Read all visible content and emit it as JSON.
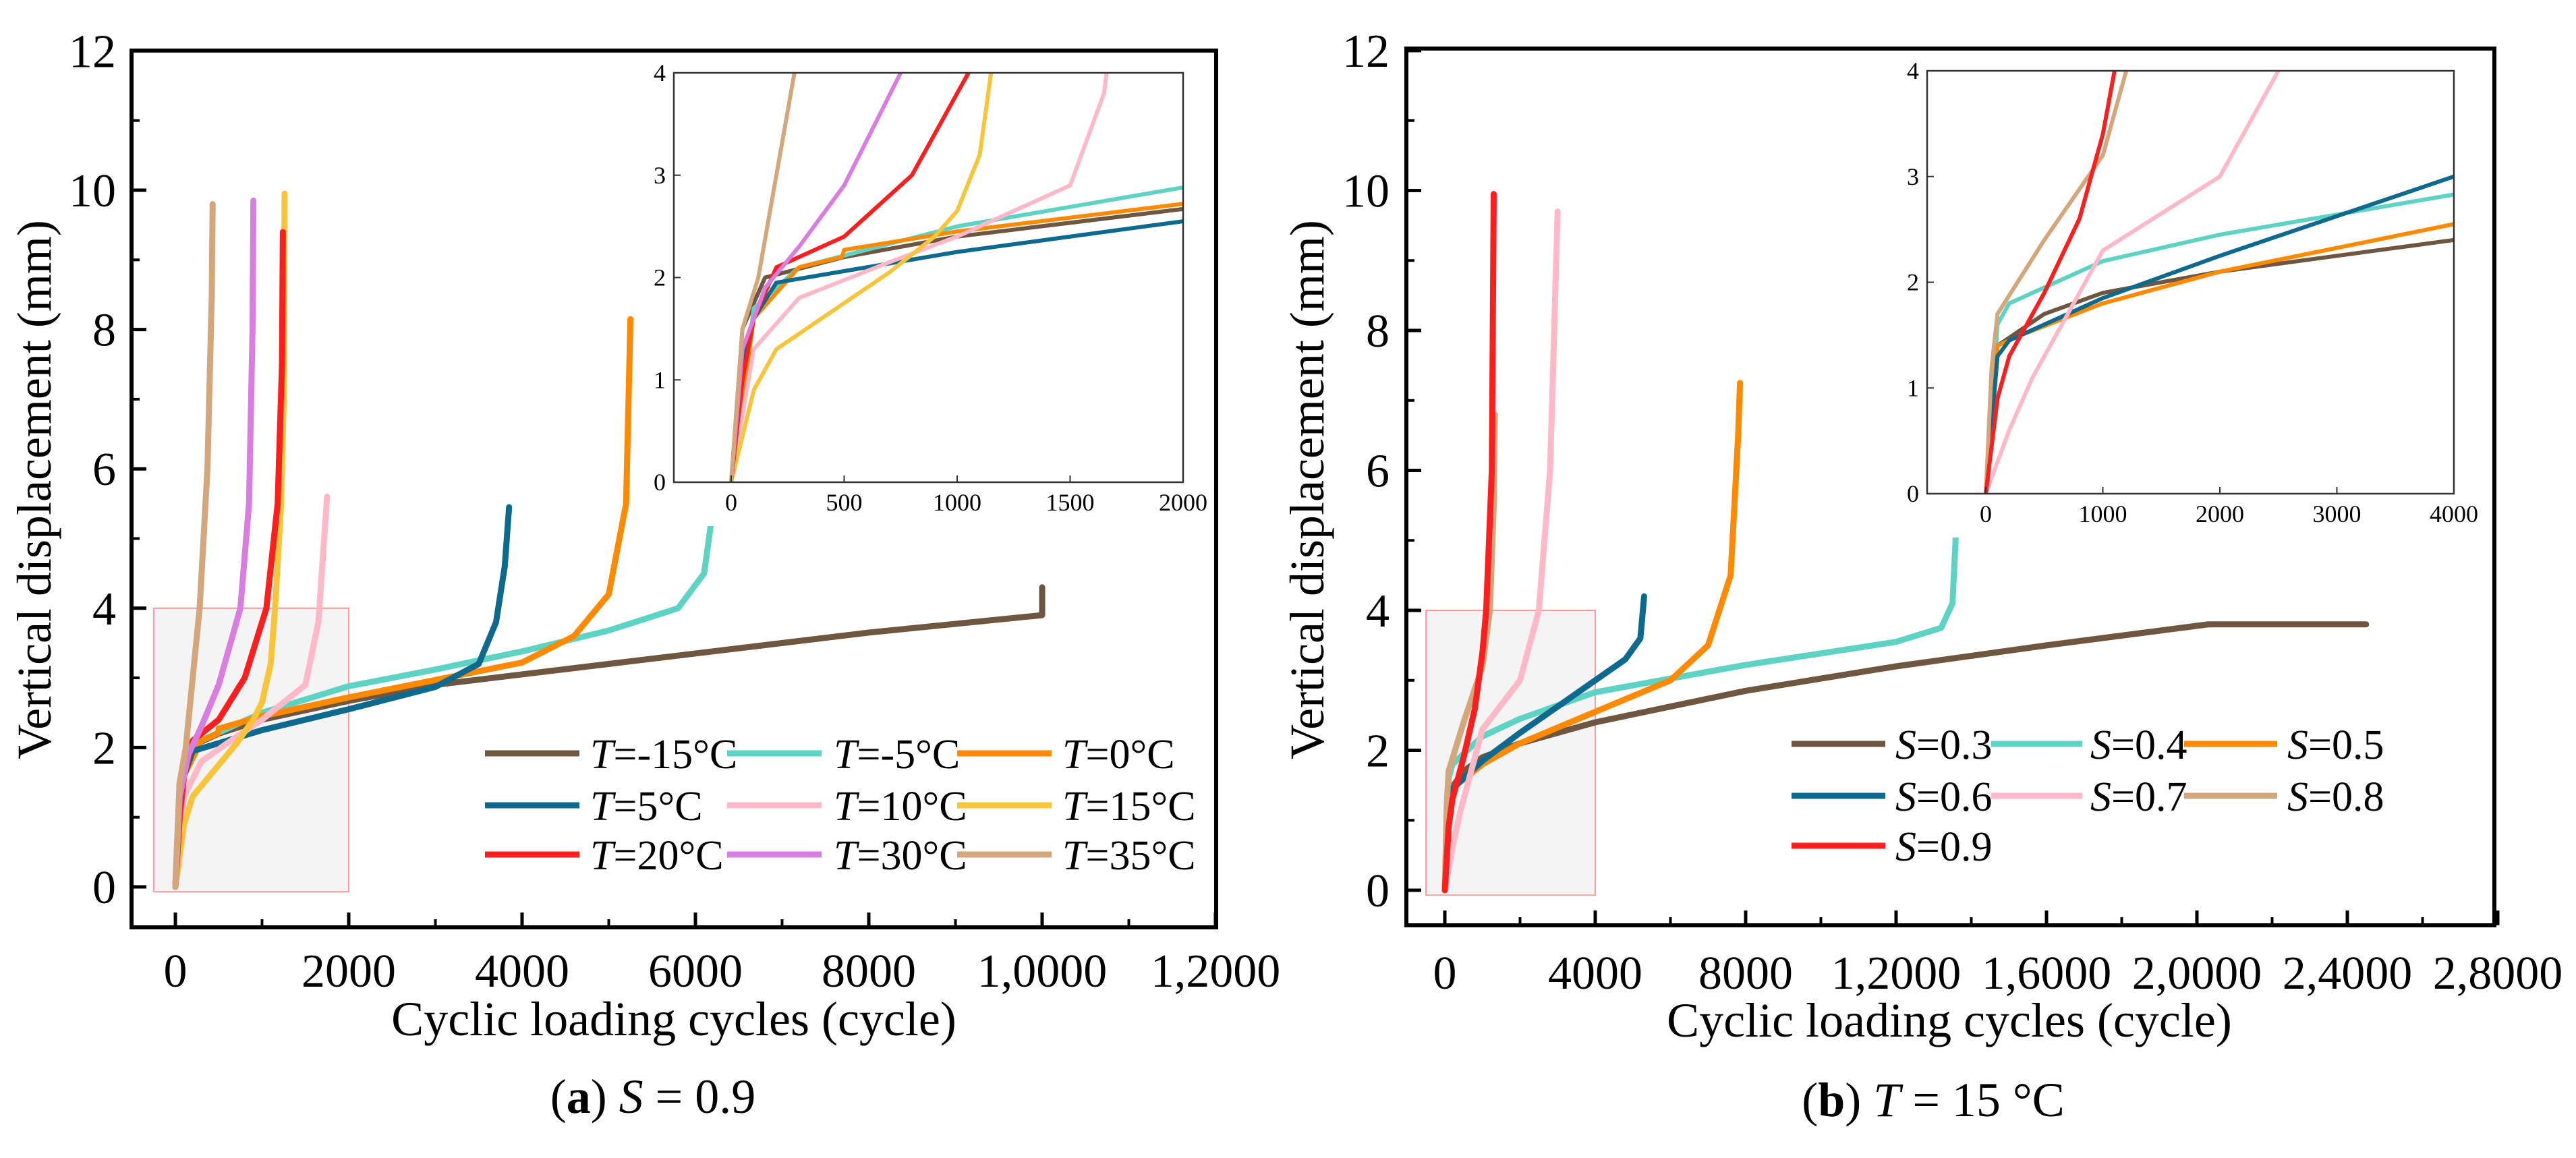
{
  "chart_data": [
    {
      "type": "line",
      "caption": {
        "label": "a",
        "var": "S",
        "rest": " = 0.9"
      },
      "xlabel": "Cyclic loading cycles (cycle)",
      "ylabel": "Vertical displacement (mm)",
      "xlim": [
        -500,
        12000
      ],
      "ylim": [
        -0.6,
        12
      ],
      "xticks": [
        {
          "v": 0,
          "t": "0"
        },
        {
          "v": 2000,
          "t": "2000"
        },
        {
          "v": 4000,
          "t": "4000"
        },
        {
          "v": 6000,
          "t": "6000"
        },
        {
          "v": 8000,
          "t": "8000"
        },
        {
          "v": 10000,
          "t": "1,0000"
        },
        {
          "v": 12000,
          "t": "1,2000"
        }
      ],
      "yticks": [
        {
          "v": 0,
          "t": "0"
        },
        {
          "v": 2,
          "t": "2"
        },
        {
          "v": 4,
          "t": "4"
        },
        {
          "v": 6,
          "t": "6"
        },
        {
          "v": 8,
          "t": "8"
        },
        {
          "v": 10,
          "t": "10"
        },
        {
          "v": 12,
          "t": "12"
        }
      ],
      "highlight_region": {
        "x": [
          -250,
          2000
        ],
        "y": [
          0,
          4
        ]
      },
      "legend_placement": "bottom-right",
      "inset": {
        "xlim": [
          -250,
          2000
        ],
        "ylim": [
          0,
          4
        ],
        "xticks": [
          {
            "v": 0,
            "t": "0"
          },
          {
            "v": 500,
            "t": "500"
          },
          {
            "v": 1000,
            "t": "1000"
          },
          {
            "v": 1500,
            "t": "1500"
          },
          {
            "v": 2000,
            "t": "2000"
          }
        ],
        "yticks": [
          {
            "v": 0,
            "t": "0"
          },
          {
            "v": 1,
            "t": "1"
          },
          {
            "v": 2,
            "t": "2"
          },
          {
            "v": 3,
            "t": "3"
          },
          {
            "v": 4,
            "t": "4"
          }
        ]
      },
      "series": [
        {
          "var": "T",
          "rest": "=-15°C",
          "color": "#6e5640",
          "points": [
            [
              0,
              0
            ],
            [
              50,
              1.5
            ],
            [
              150,
              2.0
            ],
            [
              500,
              2.2
            ],
            [
              1000,
              2.4
            ],
            [
              2000,
              2.67
            ],
            [
              3000,
              2.9
            ],
            [
              4000,
              3.05
            ],
            [
              6000,
              3.35
            ],
            [
              8000,
              3.65
            ],
            [
              10000,
              3.9
            ],
            [
              10000,
              4.3
            ]
          ]
        },
        {
          "var": "T",
          "rest": "=-5°C",
          "color": "#5fd3c3",
          "points": [
            [
              0,
              0
            ],
            [
              100,
              1.7
            ],
            [
              300,
              2.1
            ],
            [
              1000,
              2.5
            ],
            [
              2000,
              2.88
            ],
            [
              3000,
              3.12
            ],
            [
              4000,
              3.38
            ],
            [
              5000,
              3.68
            ],
            [
              5800,
              4.0
            ],
            [
              6100,
              4.5
            ],
            [
              6200,
              5.4
            ]
          ]
        },
        {
          "var": "T",
          "rest": "=0°C",
          "color": "#ff8a00",
          "points": [
            [
              0,
              0
            ],
            [
              100,
              1.6
            ],
            [
              300,
              2.1
            ],
            [
              490,
              2.2
            ],
            [
              500,
              2.27
            ],
            [
              1000,
              2.45
            ],
            [
              2000,
              2.72
            ],
            [
              3000,
              2.97
            ],
            [
              4000,
              3.22
            ],
            [
              4600,
              3.6
            ],
            [
              5000,
              4.2
            ],
            [
              5200,
              5.5
            ],
            [
              5250,
              8.15
            ]
          ]
        },
        {
          "var": "T",
          "rest": "=5°C",
          "color": "#0d6a8e",
          "points": [
            [
              0,
              0
            ],
            [
              50,
              1.2
            ],
            [
              100,
              1.6
            ],
            [
              200,
              1.95
            ],
            [
              1000,
              2.25
            ],
            [
              2000,
              2.55
            ],
            [
              3000,
              2.87
            ],
            [
              3500,
              3.2
            ],
            [
              3700,
              3.8
            ],
            [
              3800,
              4.6
            ],
            [
              3850,
              5.45
            ]
          ]
        },
        {
          "var": "T",
          "rest": "=10°C",
          "color": "#ffb8c8",
          "points": [
            [
              0,
              0
            ],
            [
              100,
              1.3
            ],
            [
              300,
              1.8
            ],
            [
              700,
              2.15
            ],
            [
              1000,
              2.4
            ],
            [
              1300,
              2.7
            ],
            [
              1500,
              2.9
            ],
            [
              1650,
              3.8
            ],
            [
              1750,
              5.6
            ]
          ]
        },
        {
          "var": "T",
          "rest": "=15°C",
          "color": "#f7c43a",
          "points": [
            [
              0,
              0
            ],
            [
              100,
              0.9
            ],
            [
              200,
              1.3
            ],
            [
              500,
              1.75
            ],
            [
              700,
              2.05
            ],
            [
              900,
              2.4
            ],
            [
              1000,
              2.65
            ],
            [
              1100,
              3.2
            ],
            [
              1150,
              4.0
            ],
            [
              1220,
              5.5
            ],
            [
              1250,
              7.0
            ],
            [
              1260,
              9.95
            ]
          ]
        },
        {
          "var": "T",
          "rest": "=20°C",
          "color": "#ff1e1e",
          "points": [
            [
              0,
              0
            ],
            [
              50,
              1.0
            ],
            [
              100,
              1.6
            ],
            [
              200,
              2.1
            ],
            [
              500,
              2.4
            ],
            [
              800,
              3.0
            ],
            [
              1050,
              4.0
            ],
            [
              1180,
              5.5
            ],
            [
              1230,
              7.5
            ],
            [
              1240,
              9.4
            ]
          ]
        },
        {
          "var": "T",
          "rest": "=30°C",
          "color": "#d97de0",
          "points": [
            [
              0,
              0
            ],
            [
              50,
              1.3
            ],
            [
              150,
              1.9
            ],
            [
              300,
              2.3
            ],
            [
              500,
              2.9
            ],
            [
              750,
              4.0
            ],
            [
              850,
              5.5
            ],
            [
              890,
              8.0
            ],
            [
              900,
              9.85
            ]
          ]
        },
        {
          "var": "T",
          "rest": "=35°C",
          "color": "#d4a67b",
          "points": [
            [
              0,
              0
            ],
            [
              50,
              1.5
            ],
            [
              120,
              2.0
            ],
            [
              200,
              3.0
            ],
            [
              280,
              4.0
            ],
            [
              370,
              6.0
            ],
            [
              420,
              8.5
            ],
            [
              430,
              9.8
            ]
          ]
        }
      ]
    },
    {
      "type": "line",
      "caption": {
        "label": "b",
        "var": "T",
        "rest": " = 15 °C"
      },
      "xlabel": "Cyclic loading cycles (cycle)",
      "ylabel": "Vertical displacement (mm)",
      "xlim": [
        -1000,
        28000
      ],
      "ylim": [
        -0.6,
        12
      ],
      "xticks": [
        {
          "v": 0,
          "t": "0"
        },
        {
          "v": 4000,
          "t": "4000"
        },
        {
          "v": 8000,
          "t": "8000"
        },
        {
          "v": 12000,
          "t": "1,2000"
        },
        {
          "v": 16000,
          "t": "1,6000"
        },
        {
          "v": 20000,
          "t": "2,0000"
        },
        {
          "v": 24000,
          "t": "2,4000"
        },
        {
          "v": 28000,
          "t": "2,8000"
        }
      ],
      "yticks": [
        {
          "v": 0,
          "t": "0"
        },
        {
          "v": 2,
          "t": "2"
        },
        {
          "v": 4,
          "t": "4"
        },
        {
          "v": 6,
          "t": "6"
        },
        {
          "v": 8,
          "t": "8"
        },
        {
          "v": 10,
          "t": "10"
        },
        {
          "v": 12,
          "t": "12"
        }
      ],
      "highlight_region": {
        "x": [
          -500,
          4000
        ],
        "y": [
          0,
          4
        ]
      },
      "legend_placement": "bottom-right",
      "inset": {
        "xlim": [
          -500,
          4000
        ],
        "ylim": [
          0,
          4
        ],
        "xticks": [
          {
            "v": 0,
            "t": "0"
          },
          {
            "v": 1000,
            "t": "1000"
          },
          {
            "v": 2000,
            "t": "2000"
          },
          {
            "v": 3000,
            "t": "3000"
          },
          {
            "v": 4000,
            "t": "4000"
          }
        ],
        "yticks": [
          {
            "v": 0,
            "t": "0"
          },
          {
            "v": 1,
            "t": "1"
          },
          {
            "v": 2,
            "t": "2"
          },
          {
            "v": 3,
            "t": "3"
          },
          {
            "v": 4,
            "t": "4"
          }
        ]
      },
      "series": [
        {
          "var": "S",
          "rest": "=0.3",
          "color": "#6e5640",
          "points": [
            [
              0,
              0
            ],
            [
              100,
              1.4
            ],
            [
              500,
              1.7
            ],
            [
              1000,
              1.9
            ],
            [
              2000,
              2.1
            ],
            [
              4000,
              2.4
            ],
            [
              8000,
              2.85
            ],
            [
              12000,
              3.2
            ],
            [
              16000,
              3.5
            ],
            [
              20300,
              3.8
            ],
            [
              24500,
              3.8
            ]
          ]
        },
        {
          "var": "S",
          "rest": "=0.4",
          "color": "#5fd3c3",
          "points": [
            [
              0,
              0
            ],
            [
              100,
              1.6
            ],
            [
              200,
              1.8
            ],
            [
              1000,
              2.2
            ],
            [
              2000,
              2.45
            ],
            [
              4000,
              2.83
            ],
            [
              8000,
              3.22
            ],
            [
              12000,
              3.55
            ],
            [
              13200,
              3.75
            ],
            [
              13500,
              4.1
            ],
            [
              13600,
              5.2
            ]
          ]
        },
        {
          "var": "S",
          "rest": "=0.5",
          "color": "#ff8a00",
          "points": [
            [
              0,
              0
            ],
            [
              100,
              1.4
            ],
            [
              300,
              1.5
            ],
            [
              1000,
              1.8
            ],
            [
              2000,
              2.1
            ],
            [
              4000,
              2.55
            ],
            [
              6000,
              3.0
            ],
            [
              7000,
              3.5
            ],
            [
              7600,
              4.5
            ],
            [
              7800,
              6.5
            ],
            [
              7850,
              7.25
            ]
          ]
        },
        {
          "var": "S",
          "rest": "=0.6",
          "color": "#0d6a8e",
          "points": [
            [
              0,
              0
            ],
            [
              100,
              1.3
            ],
            [
              200,
              1.45
            ],
            [
              1000,
              1.85
            ],
            [
              2000,
              2.25
            ],
            [
              4000,
              3.0
            ],
            [
              4800,
              3.3
            ],
            [
              5200,
              3.6
            ],
            [
              5300,
              4.2
            ]
          ]
        },
        {
          "var": "S",
          "rest": "=0.7",
          "color": "#ffb8c8",
          "points": [
            [
              0,
              0
            ],
            [
              200,
              0.6
            ],
            [
              400,
              1.1
            ],
            [
              700,
              1.7
            ],
            [
              1000,
              2.3
            ],
            [
              2000,
              3.0
            ],
            [
              2500,
              4.0
            ],
            [
              2800,
              6.0
            ],
            [
              3000,
              9.7
            ]
          ]
        },
        {
          "var": "S",
          "rest": "=0.8",
          "color": "#d4a67b",
          "points": [
            [
              0,
              0
            ],
            [
              50,
              1.2
            ],
            [
              100,
              1.7
            ],
            [
              500,
              2.4
            ],
            [
              1000,
              3.2
            ],
            [
              1200,
              4.0
            ],
            [
              1300,
              5.5
            ],
            [
              1330,
              6.8
            ]
          ]
        },
        {
          "var": "S",
          "rest": "=0.9",
          "color": "#ff1e1e",
          "points": [
            [
              0,
              0
            ],
            [
              100,
              0.9
            ],
            [
              200,
              1.3
            ],
            [
              500,
              1.9
            ],
            [
              800,
              2.6
            ],
            [
              1000,
              3.4
            ],
            [
              1100,
              4.0
            ],
            [
              1250,
              6.0
            ],
            [
              1300,
              9.95
            ]
          ]
        }
      ]
    }
  ]
}
